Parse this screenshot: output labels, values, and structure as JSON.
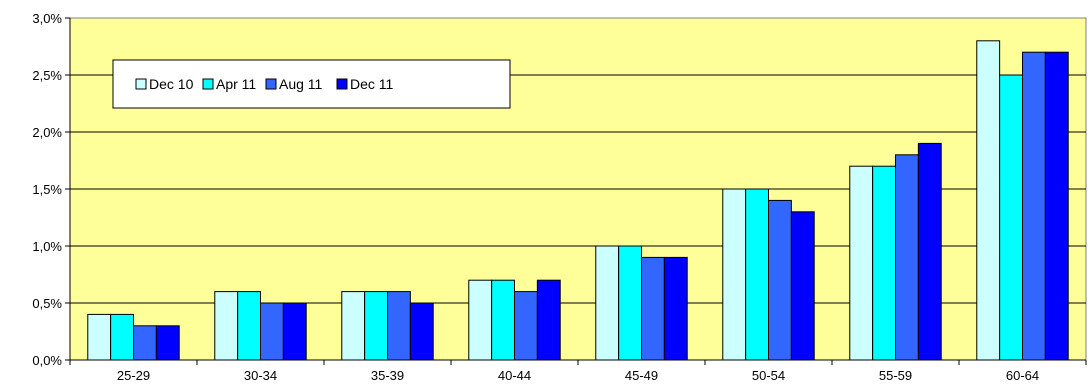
{
  "chart_data": {
    "type": "bar",
    "title": "",
    "xlabel": "",
    "ylabel": "",
    "categories": [
      "25-29",
      "30-34",
      "35-39",
      "40-44",
      "45-49",
      "50-54",
      "55-59",
      "60-64"
    ],
    "series": [
      {
        "name": "Dec 10",
        "color": "#ccffff",
        "values": [
          0.4,
          0.6,
          0.6,
          0.7,
          1.0,
          1.5,
          1.7,
          2.8
        ]
      },
      {
        "name": "Apr 11",
        "color": "#00ffff",
        "values": [
          0.4,
          0.6,
          0.6,
          0.7,
          1.0,
          1.5,
          1.7,
          2.5
        ]
      },
      {
        "name": "Aug 11",
        "color": "#3366ff",
        "values": [
          0.3,
          0.5,
          0.6,
          0.6,
          0.9,
          1.4,
          1.8,
          2.7
        ]
      },
      {
        "name": "Dec 11",
        "color": "#0000ff",
        "values": [
          0.3,
          0.5,
          0.5,
          0.7,
          0.9,
          1.3,
          1.9,
          2.7
        ]
      }
    ],
    "ylim": [
      0,
      3.0
    ],
    "yticks": [
      "0,0%",
      "0,5%",
      "1,0%",
      "1,5%",
      "2,0%",
      "2,5%",
      "3,0%"
    ],
    "grid": true,
    "plot_background": "#ffff99",
    "legend_position": "top-left"
  }
}
